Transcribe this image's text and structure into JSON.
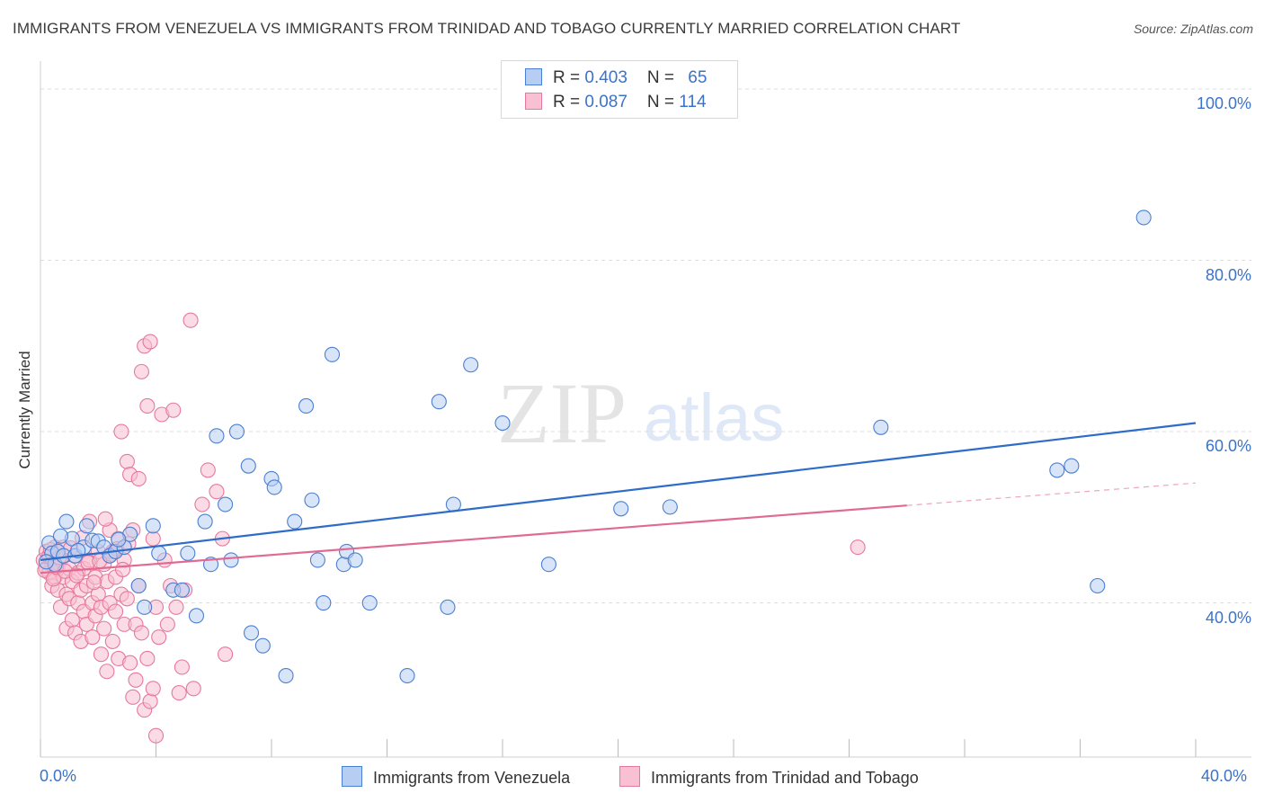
{
  "title": "IMMIGRANTS FROM VENEZUELA VS IMMIGRANTS FROM TRINIDAD AND TOBAGO CURRENTLY MARRIED CORRELATION CHART",
  "source": "Source: ZipAtlas.com",
  "watermark": {
    "zip": "ZIP",
    "atlas": "atlas"
  },
  "legend": {
    "rows": [
      {
        "r_label": "R = ",
        "r_value": "0.403",
        "n_label": "N = ",
        "n_value": "65"
      },
      {
        "r_label": "R = ",
        "r_value": "0.087",
        "n_label": "N = ",
        "n_value": "114"
      }
    ]
  },
  "colors": {
    "venezuela_fill": "#b8cdf2",
    "venezuela_stroke": "#4a7fd1",
    "venezuela_line": "#2e6cc9",
    "trinidad_fill": "#f8c0d2",
    "trinidad_stroke": "#e6799b",
    "trinidad_line": "#e06a92",
    "axis_label": "#3b73c8",
    "grid": "#dddddd"
  },
  "chart_data": {
    "type": "scatter",
    "title": "IMMIGRANTS FROM VENEZUELA VS IMMIGRANTS FROM TRINIDAD AND TOBAGO CURRENTLY MARRIED CORRELATION CHART",
    "xlabel": "",
    "ylabel": "Currently Married",
    "xlim": [
      0,
      40
    ],
    "ylim": [
      22,
      102
    ],
    "x_tick_labels": [
      "0.0%",
      "40.0%"
    ],
    "y_ticks": [
      40,
      60,
      80,
      100
    ],
    "y_tick_labels": [
      "40.0%",
      "60.0%",
      "80.0%",
      "100.0%"
    ],
    "grid": true,
    "legend_position": "top-center",
    "series": [
      {
        "name": "Immigrants from Venezuela",
        "r": 0.403,
        "n": 65,
        "trend": {
          "x": [
            0,
            40
          ],
          "y": [
            45.0,
            61.0
          ],
          "dashed_from": null
        },
        "points": [
          [
            0.3,
            47.0
          ],
          [
            0.4,
            45.8
          ],
          [
            0.5,
            44.5
          ],
          [
            0.6,
            46.0
          ],
          [
            0.8,
            45.5
          ],
          [
            0.9,
            49.5
          ],
          [
            1.1,
            47.5
          ],
          [
            1.2,
            45.5
          ],
          [
            1.5,
            46.5
          ],
          [
            1.6,
            49.0
          ],
          [
            1.8,
            47.3
          ],
          [
            2.0,
            47.2
          ],
          [
            2.2,
            46.5
          ],
          [
            2.4,
            45.5
          ],
          [
            2.6,
            46.0
          ],
          [
            2.9,
            46.5
          ],
          [
            3.1,
            48.0
          ],
          [
            3.4,
            42.0
          ],
          [
            3.6,
            39.5
          ],
          [
            3.9,
            49.0
          ],
          [
            4.1,
            45.8
          ],
          [
            4.6,
            41.5
          ],
          [
            4.9,
            41.5
          ],
          [
            5.1,
            45.8
          ],
          [
            5.4,
            38.5
          ],
          [
            5.7,
            49.5
          ],
          [
            5.9,
            44.5
          ],
          [
            6.1,
            59.5
          ],
          [
            6.4,
            51.5
          ],
          [
            6.6,
            45.0
          ],
          [
            6.8,
            60.0
          ],
          [
            7.2,
            56.0
          ],
          [
            7.3,
            36.5
          ],
          [
            7.7,
            35.0
          ],
          [
            8.0,
            54.5
          ],
          [
            8.1,
            53.5
          ],
          [
            8.5,
            31.5
          ],
          [
            8.8,
            49.5
          ],
          [
            9.2,
            63.0
          ],
          [
            9.4,
            52.0
          ],
          [
            9.6,
            45.0
          ],
          [
            9.8,
            40.0
          ],
          [
            10.1,
            69.0
          ],
          [
            10.5,
            44.5
          ],
          [
            10.6,
            46.0
          ],
          [
            10.9,
            45.0
          ],
          [
            11.4,
            40.0
          ],
          [
            12.7,
            31.5
          ],
          [
            13.8,
            63.5
          ],
          [
            14.1,
            39.5
          ],
          [
            14.3,
            51.5
          ],
          [
            14.9,
            67.8
          ],
          [
            16.0,
            61.0
          ],
          [
            17.6,
            44.5
          ],
          [
            20.1,
            51.0
          ],
          [
            21.8,
            51.2
          ],
          [
            29.1,
            60.5
          ],
          [
            35.2,
            55.5
          ],
          [
            35.7,
            56.0
          ],
          [
            36.6,
            42.0
          ],
          [
            38.2,
            85.0
          ],
          [
            0.2,
            44.8
          ],
          [
            0.7,
            47.8
          ],
          [
            2.7,
            47.4
          ],
          [
            1.3,
            46.1
          ]
        ]
      },
      {
        "name": "Immigrants from Trinidad and Tobago",
        "r": 0.087,
        "n": 114,
        "trend": {
          "x": [
            0,
            40
          ],
          "y": [
            43.5,
            54.0
          ],
          "dashed_from": 30
        },
        "points": [
          [
            0.1,
            45.0
          ],
          [
            0.2,
            44.0
          ],
          [
            0.2,
            46.0
          ],
          [
            0.3,
            43.5
          ],
          [
            0.3,
            45.5
          ],
          [
            0.4,
            42.0
          ],
          [
            0.4,
            44.5
          ],
          [
            0.5,
            46.5
          ],
          [
            0.5,
            43.0
          ],
          [
            0.6,
            44.0
          ],
          [
            0.6,
            41.5
          ],
          [
            0.7,
            45.0
          ],
          [
            0.7,
            39.5
          ],
          [
            0.8,
            43.0
          ],
          [
            0.8,
            46.5
          ],
          [
            0.9,
            41.0
          ],
          [
            0.9,
            37.0
          ],
          [
            1.0,
            44.0
          ],
          [
            1.0,
            40.5
          ],
          [
            1.1,
            42.5
          ],
          [
            1.1,
            38.0
          ],
          [
            1.2,
            45.5
          ],
          [
            1.2,
            36.5
          ],
          [
            1.3,
            43.5
          ],
          [
            1.3,
            40.0
          ],
          [
            1.4,
            41.5
          ],
          [
            1.4,
            35.5
          ],
          [
            1.5,
            44.0
          ],
          [
            1.5,
            39.0
          ],
          [
            1.6,
            42.0
          ],
          [
            1.6,
            37.5
          ],
          [
            1.7,
            45.0
          ],
          [
            1.7,
            49.5
          ],
          [
            1.8,
            40.0
          ],
          [
            1.8,
            36.0
          ],
          [
            1.9,
            43.0
          ],
          [
            1.9,
            38.5
          ],
          [
            2.0,
            46.0
          ],
          [
            2.0,
            41.0
          ],
          [
            2.1,
            39.5
          ],
          [
            2.1,
            34.0
          ],
          [
            2.2,
            44.5
          ],
          [
            2.2,
            37.0
          ],
          [
            2.3,
            42.5
          ],
          [
            2.3,
            32.0
          ],
          [
            2.4,
            40.0
          ],
          [
            2.4,
            48.5
          ],
          [
            2.5,
            46.0
          ],
          [
            2.5,
            35.5
          ],
          [
            2.6,
            43.0
          ],
          [
            2.6,
            39.0
          ],
          [
            2.7,
            33.5
          ],
          [
            2.7,
            47.5
          ],
          [
            2.8,
            41.0
          ],
          [
            2.8,
            60.0
          ],
          [
            2.9,
            37.5
          ],
          [
            2.9,
            45.0
          ],
          [
            3.0,
            56.5
          ],
          [
            3.0,
            40.5
          ],
          [
            3.1,
            33.0
          ],
          [
            3.1,
            55.0
          ],
          [
            3.2,
            29.0
          ],
          [
            3.2,
            48.5
          ],
          [
            3.3,
            31.0
          ],
          [
            3.3,
            37.5
          ],
          [
            3.4,
            54.5
          ],
          [
            3.4,
            42.0
          ],
          [
            3.5,
            67.0
          ],
          [
            3.5,
            36.5
          ],
          [
            3.6,
            27.5
          ],
          [
            3.6,
            70.0
          ],
          [
            3.7,
            63.0
          ],
          [
            3.7,
            33.5
          ],
          [
            3.8,
            70.5
          ],
          [
            3.8,
            28.5
          ],
          [
            3.9,
            47.5
          ],
          [
            3.9,
            30.0
          ],
          [
            4.0,
            24.5
          ],
          [
            4.0,
            39.5
          ],
          [
            4.1,
            36.0
          ],
          [
            4.2,
            62.0
          ],
          [
            4.3,
            45.0
          ],
          [
            4.4,
            37.5
          ],
          [
            4.5,
            42.0
          ],
          [
            4.6,
            62.5
          ],
          [
            4.7,
            39.5
          ],
          [
            4.8,
            29.5
          ],
          [
            4.9,
            32.5
          ],
          [
            5.0,
            41.5
          ],
          [
            5.2,
            73.0
          ],
          [
            5.3,
            30.0
          ],
          [
            5.6,
            51.5
          ],
          [
            5.8,
            55.5
          ],
          [
            6.1,
            53.0
          ],
          [
            6.3,
            47.5
          ],
          [
            6.4,
            34.0
          ],
          [
            0.15,
            43.8
          ],
          [
            0.35,
            46.2
          ],
          [
            0.45,
            42.8
          ],
          [
            0.55,
            44.2
          ],
          [
            0.65,
            45.3
          ],
          [
            0.85,
            43.7
          ],
          [
            1.05,
            46.4
          ],
          [
            1.25,
            43.2
          ],
          [
            1.45,
            47.6
          ],
          [
            1.65,
            44.7
          ],
          [
            1.85,
            42.4
          ],
          [
            2.05,
            44.9
          ],
          [
            2.25,
            49.8
          ],
          [
            2.45,
            45.7
          ],
          [
            2.65,
            46.3
          ],
          [
            2.85,
            43.9
          ],
          [
            3.05,
            46.9
          ],
          [
            28.3,
            46.5
          ]
        ]
      }
    ]
  },
  "bottom_legend": [
    "Immigrants from Venezuela",
    "Immigrants from Trinidad and Tobago"
  ]
}
